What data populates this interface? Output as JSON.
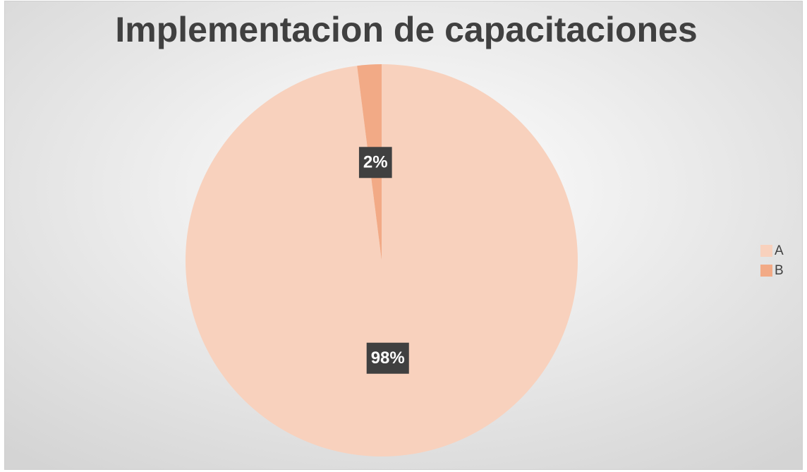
{
  "chart_data": {
    "type": "pie",
    "title": "Implementacion de capacitaciones",
    "categories": [
      "A",
      "B"
    ],
    "values": [
      98,
      2
    ],
    "value_labels": [
      "98%",
      "2%"
    ],
    "colors": [
      "#f8d1bd",
      "#f2aa86"
    ],
    "legend": "right"
  }
}
